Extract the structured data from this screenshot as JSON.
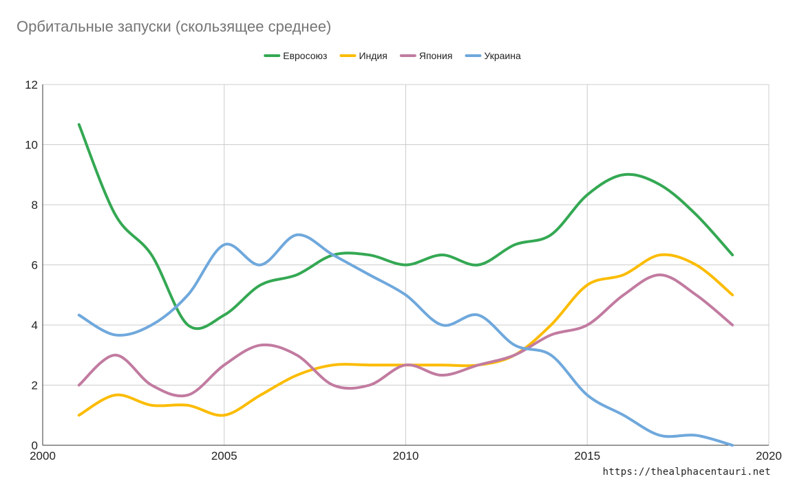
{
  "chart_data": {
    "type": "line",
    "title": "Орбитальные запуски (скользящее среднее)",
    "xlabel": "",
    "ylabel": "",
    "xlim": [
      2000,
      2020
    ],
    "ylim": [
      0,
      12
    ],
    "x_ticks": [
      "2000",
      "2005",
      "2010",
      "2015",
      "2020"
    ],
    "y_ticks": [
      "0",
      "2",
      "4",
      "6",
      "8",
      "10",
      "12"
    ],
    "grid": true,
    "legend_position": "top",
    "smooth": true,
    "x": [
      2001,
      2002,
      2003,
      2004,
      2005,
      2006,
      2007,
      2008,
      2009,
      2010,
      2011,
      2012,
      2013,
      2014,
      2015,
      2016,
      2017,
      2018,
      2019
    ],
    "series": [
      {
        "name": "Евросоюз",
        "color": "#34a853",
        "values": [
          10.67,
          7.67,
          6.33,
          4.0,
          4.33,
          5.33,
          5.67,
          6.33,
          6.33,
          6.0,
          6.33,
          6.0,
          6.67,
          7.0,
          8.33,
          9.0,
          8.67,
          7.67,
          6.33
        ]
      },
      {
        "name": "Индия",
        "color": "#fbbc04",
        "values": [
          1.0,
          1.67,
          1.33,
          1.33,
          1.0,
          1.67,
          2.33,
          2.67,
          2.67,
          2.67,
          2.67,
          2.67,
          3.0,
          4.0,
          5.33,
          5.67,
          6.33,
          6.0,
          5.0
        ]
      },
      {
        "name": "Япония",
        "color": "#c27ba0",
        "values": [
          2.0,
          3.0,
          2.0,
          1.67,
          2.67,
          3.33,
          3.0,
          2.0,
          2.0,
          2.67,
          2.33,
          2.67,
          3.0,
          3.67,
          4.0,
          5.0,
          5.67,
          5.0,
          4.0
        ]
      },
      {
        "name": "Украина",
        "color": "#6fa8dc",
        "values": [
          4.33,
          3.67,
          4.0,
          5.0,
          6.67,
          6.0,
          7.0,
          6.33,
          5.67,
          5.0,
          4.0,
          4.33,
          3.33,
          3.0,
          1.67,
          1.0,
          0.33,
          0.33,
          0.0
        ]
      }
    ]
  },
  "watermark": "https://thealphacentauri.net"
}
